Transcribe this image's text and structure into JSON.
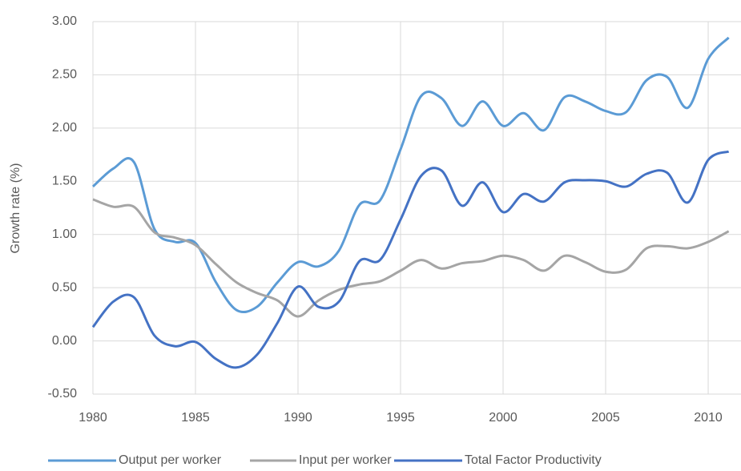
{
  "chart_data": {
    "type": "line",
    "y_label": "Growth rate (%)",
    "x": [
      1980,
      1981,
      1982,
      1983,
      1984,
      1985,
      1986,
      1987,
      1988,
      1989,
      1990,
      1991,
      1992,
      1993,
      1994,
      1995,
      1996,
      1997,
      1998,
      1999,
      2000,
      2001,
      2002,
      2003,
      2004,
      2005,
      2006,
      2007,
      2008,
      2009,
      2010,
      2011
    ],
    "series": [
      {
        "name": "Output per worker",
        "color": "#5b9bd5",
        "values": [
          1.45,
          1.62,
          1.68,
          1.05,
          0.93,
          0.92,
          0.55,
          0.29,
          0.32,
          0.55,
          0.74,
          0.7,
          0.85,
          1.28,
          1.32,
          1.8,
          2.3,
          2.28,
          2.02,
          2.25,
          2.02,
          2.14,
          1.98,
          2.29,
          2.25,
          2.16,
          2.15,
          2.45,
          2.48,
          2.19,
          2.65,
          2.85
        ]
      },
      {
        "name": "Input per worker",
        "color": "#a5a5a5",
        "values": [
          1.33,
          1.26,
          1.26,
          1.02,
          0.97,
          0.9,
          0.72,
          0.55,
          0.45,
          0.38,
          0.23,
          0.38,
          0.48,
          0.53,
          0.56,
          0.66,
          0.76,
          0.68,
          0.73,
          0.75,
          0.8,
          0.76,
          0.66,
          0.8,
          0.74,
          0.65,
          0.67,
          0.87,
          0.89,
          0.87,
          0.93,
          1.03
        ]
      },
      {
        "name": "Total Factor Productivity",
        "color": "#4472c4",
        "values": [
          0.13,
          0.37,
          0.41,
          0.05,
          -0.05,
          -0.01,
          -0.17,
          -0.25,
          -0.13,
          0.17,
          0.51,
          0.32,
          0.37,
          0.75,
          0.76,
          1.14,
          1.55,
          1.6,
          1.27,
          1.49,
          1.21,
          1.38,
          1.31,
          1.49,
          1.51,
          1.5,
          1.45,
          1.57,
          1.58,
          1.3,
          1.7,
          1.78
        ]
      }
    ],
    "xlim": [
      1980,
      2011.6
    ],
    "xticks": [
      1980,
      1985,
      1990,
      1995,
      2000,
      2005,
      2010
    ],
    "ylim": [
      -0.5,
      3
    ],
    "yticks": [
      {
        "value": -0.5,
        "label": "-0.50"
      },
      {
        "value": 0,
        "label": "0.00"
      },
      {
        "value": 0.5,
        "label": "0.50"
      },
      {
        "value": 1,
        "label": "1.00"
      },
      {
        "value": 1.5,
        "label": "1.50"
      },
      {
        "value": 2,
        "label": "2.00"
      },
      {
        "value": 2.5,
        "label": "2.50"
      },
      {
        "value": 3,
        "label": "3.00"
      }
    ],
    "grid": true,
    "legend": "bottom"
  }
}
